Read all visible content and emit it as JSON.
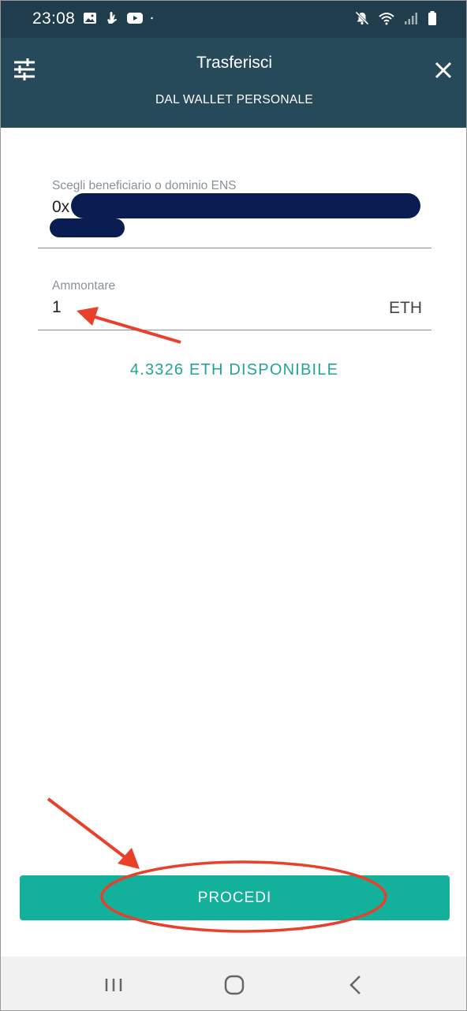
{
  "status_bar": {
    "time": "23:08",
    "left_icons": [
      "image-icon",
      "hand-icon",
      "youtube-icon",
      "dot-icon"
    ],
    "right_icons": [
      "mute-icon",
      "wifi-icon",
      "signal-icon",
      "battery-icon"
    ]
  },
  "app_bar": {
    "title": "Trasferisci",
    "subtitle": "DAL WALLET PERSONALE",
    "left_icon": "filter-icon",
    "right_icon": "close-icon"
  },
  "recipient": {
    "label": "Scegli beneficiario o dominio ENS",
    "value_prefix": "0x"
  },
  "amount": {
    "label": "Ammontare",
    "value": "1",
    "unit": "ETH"
  },
  "available": "4.3326 ETH DISPONIBILE",
  "button": {
    "label": "PROCEDI"
  },
  "colors": {
    "status_bar": "#1f3d4c",
    "app_bar": "#274a5b",
    "accent_text": "#22a596",
    "button": "#13b09b",
    "annotation": "#e8402a",
    "redaction": "#0a1d52"
  },
  "nav_bar": {
    "icons": [
      "recent-apps-icon",
      "home-icon",
      "back-icon"
    ]
  }
}
